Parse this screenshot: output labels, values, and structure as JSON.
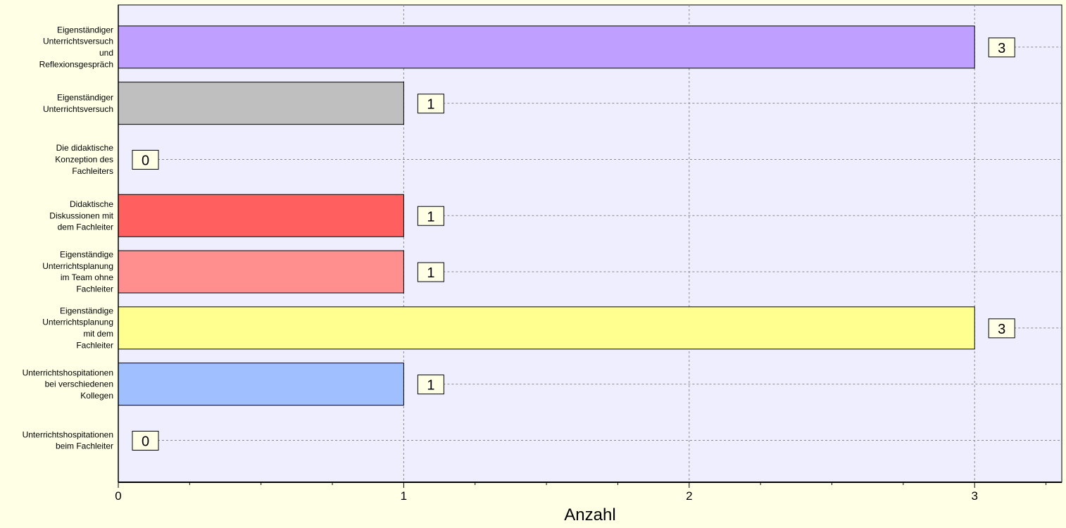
{
  "chart_data": {
    "type": "bar",
    "orientation": "horizontal",
    "categories": [
      "Eigenständiger Unterrichtsversuch und Reflexionsgespräch",
      "Eigenständiger Unterrichtsversuch",
      "Die didaktische Konzeption des Fachleiters",
      "Didaktische Diskussionen mit dem Fachleiter",
      "Eigenständige Unterrichtsplanung im Team ohne Fachleiter",
      "Eigenständige Unterrichtsplanung mit dem Fachleiter",
      "Unterrichtshospitationen bei verschiedenen Kollegen",
      "Unterrichtshospitationen beim Fachleiter"
    ],
    "category_lines": [
      [
        "Eigenständiger",
        "Unterrichtsversuch",
        "und",
        "Reflexionsgespräch"
      ],
      [
        "Eigenständiger",
        "Unterrichtsversuch"
      ],
      [
        "Die didaktische",
        "Konzeption des",
        "Fachleiters"
      ],
      [
        "Didaktische",
        "Diskussionen mit",
        "dem Fachleiter"
      ],
      [
        "Eigenständige",
        "Unterrichtsplanung",
        "im Team ohne",
        "Fachleiter"
      ],
      [
        "Eigenständige",
        "Unterrichtsplanung",
        "mit dem",
        "Fachleiter"
      ],
      [
        "Unterrichtshospitationen",
        "bei verschiedenen",
        "Kollegen"
      ],
      [
        "Unterrichtshospitationen",
        "beim Fachleiter"
      ]
    ],
    "values": [
      3,
      1,
      0,
      1,
      1,
      3,
      1,
      0
    ],
    "value_labels": [
      "3",
      "1",
      "0",
      "1",
      "1",
      "3",
      "1",
      "0"
    ],
    "colors": [
      "#bf9fff",
      "#bfbfbf",
      "#bfbfbf",
      "#ff5f5f",
      "#ff8f8f",
      "#ffff8f",
      "#9fbfff",
      "#bfbfbf"
    ],
    "xlabel": "Anzahl",
    "ylabel": "",
    "xlim": [
      0,
      3.35
    ],
    "xticks": [
      0,
      1,
      2,
      3
    ],
    "xtick_labels": [
      "0",
      "1",
      "2",
      "3"
    ],
    "minor_tick_step": 0.25,
    "grid": true,
    "legend": "none",
    "plot_background": "#eeeeff",
    "page_background": "#ffffe6",
    "label_box_color": "#ffffe6"
  }
}
